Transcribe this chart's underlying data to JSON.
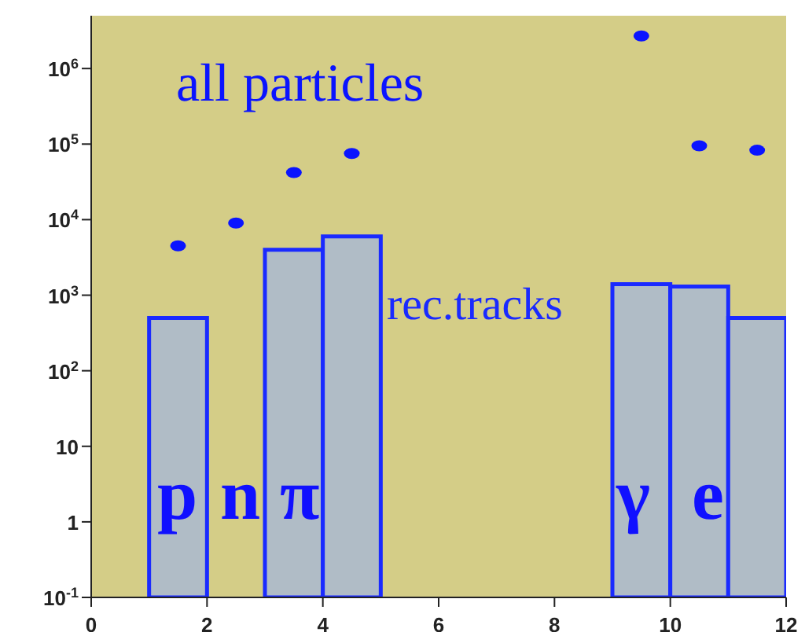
{
  "chart_data": {
    "type": "histogram",
    "series": [
      {
        "name": "rec.tracks",
        "color": "#1a2aff",
        "bins": [
          0,
          1,
          2,
          3,
          4,
          5,
          6,
          7,
          8,
          9,
          10,
          11,
          12
        ],
        "values": [
          null,
          500,
          null,
          4000,
          6000,
          null,
          null,
          null,
          null,
          1400,
          1300,
          500
        ]
      },
      {
        "name": "all particles",
        "type": "scatter",
        "color": "#0a14ff",
        "x": [
          1.5,
          2.5,
          3.5,
          4.5,
          9.5,
          10.5,
          11.5
        ],
        "values": [
          4500,
          9000,
          42000,
          75000,
          2700000,
          95000,
          83000
        ]
      }
    ],
    "xlim": [
      0,
      12
    ],
    "xticks": [
      0,
      2,
      4,
      6,
      8,
      10,
      12
    ],
    "ylim": [
      0.1,
      5000000
    ],
    "log": "y",
    "yticks": [
      {
        "value": 0.1,
        "label": "10$^{-1}$"
      },
      1,
      10,
      {
        "value": 100,
        "label": "10$^{2}$"
      },
      {
        "value": 1000,
        "label": "10$^{3}$"
      },
      {
        "value": 10000,
        "label": "10$^{4}$"
      },
      {
        "value": 100000,
        "label": "10$^{5}$"
      },
      {
        "value": 1000000,
        "label": "10$^{6}$"
      }
    ],
    "marker": "circle",
    "grid": false,
    "legend": false,
    "annotations": [
      "p",
      "n",
      "π",
      "γ",
      "e"
    ]
  }
}
